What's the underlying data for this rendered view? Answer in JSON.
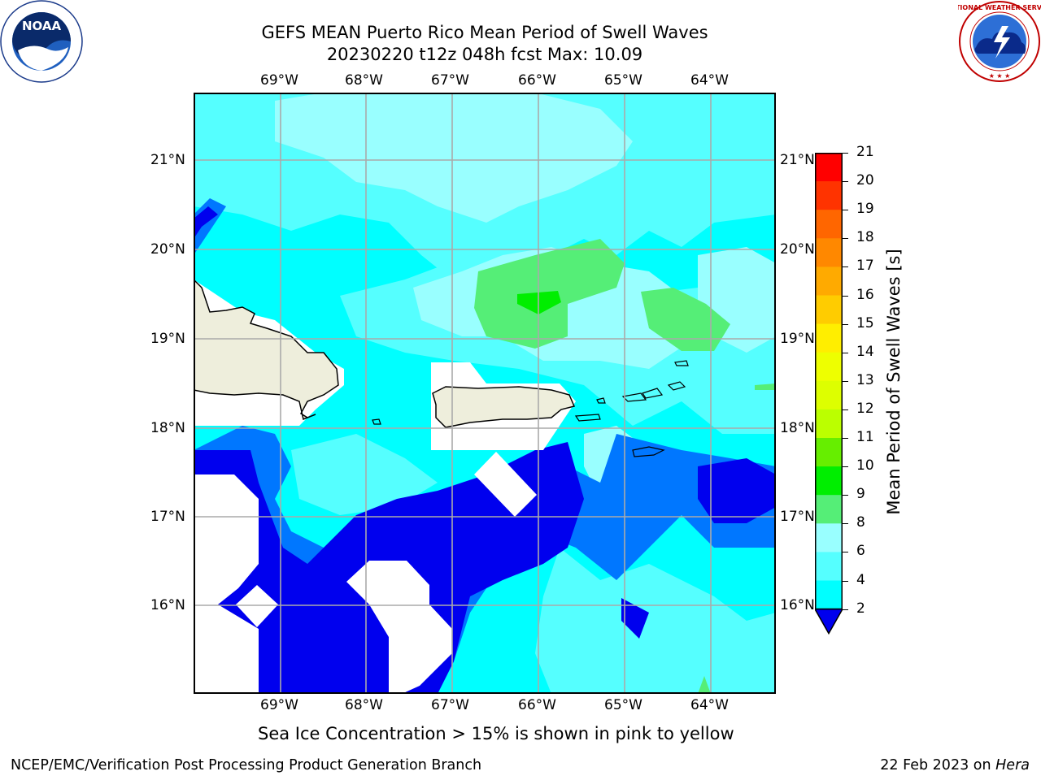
{
  "title": {
    "line1": "GEFS MEAN Puerto Rico Mean Period of Swell Waves",
    "line2": "20230220 t12z 048h fcst   Max: 10.09"
  },
  "axes": {
    "lon_labels": [
      "69°W",
      "68°W",
      "67°W",
      "66°W",
      "65°W",
      "64°W"
    ],
    "lat_labels": [
      "21°N",
      "20°N",
      "19°N",
      "18°N",
      "17°N",
      "16°N"
    ]
  },
  "colorbar": {
    "title": "Mean Period of Swell Waves [s]",
    "ticks": [
      "21",
      "20",
      "19",
      "18",
      "17",
      "16",
      "15",
      "14",
      "13",
      "12",
      "11",
      "10",
      "9",
      "8",
      "6",
      "4",
      "2"
    ],
    "colors": [
      "#ff0000",
      "#ff3300",
      "#ff6600",
      "#ff8800",
      "#ffaa00",
      "#ffcc00",
      "#ffee00",
      "#eeff00",
      "#ddff00",
      "#bbff00",
      "#66ee00",
      "#00ee00",
      "#55ee77",
      "#99ffff",
      "#55ffff",
      "#00ffff",
      "#00ddff",
      "#0077ff",
      "#0000ee"
    ]
  },
  "note": "Sea Ice Concentration > 15% is shown in pink to yellow",
  "footer": {
    "left": "NCEP/EMC/Verification Post Processing Product Generation Branch",
    "right_date": "22 Feb 2023 on ",
    "right_machine": "Hera"
  },
  "logos": {
    "noaa_text": "NOAA",
    "nws_text": "NATIONAL WEATHER SERVICE"
  }
}
